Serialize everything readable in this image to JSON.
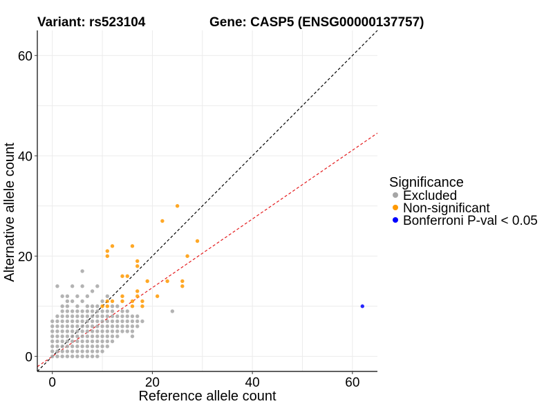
{
  "chart_data": {
    "type": "scatter",
    "title_left": "Variant: rs523104",
    "title_right": "Gene: CASP5 (ENSG00000137757)",
    "xlabel": "Reference allele count",
    "ylabel": "Alternative allele count",
    "xlim": [
      -3,
      65
    ],
    "ylim": [
      -3,
      65
    ],
    "xticks": [
      0,
      20,
      40,
      60
    ],
    "yticks": [
      0,
      20,
      40,
      60
    ],
    "grid": true,
    "reference_lines": [
      {
        "name": "identity",
        "slope": 1.0,
        "intercept": 0,
        "color": "#000000",
        "style": "dashed"
      },
      {
        "name": "fit",
        "slope": 0.685,
        "intercept": 0,
        "color": "#e41a1c",
        "style": "dashed"
      }
    ],
    "legend": {
      "title": "Significance",
      "position": "right",
      "items": [
        {
          "label": "Excluded",
          "color": "#a6a6a6"
        },
        {
          "label": "Non-significant",
          "color": "#ff9900"
        },
        {
          "label": "Bonferroni P-val < 0.05",
          "color": "#0000ff"
        }
      ]
    },
    "series": [
      {
        "name": "Excluded",
        "color": "#a6a6a6",
        "points": [
          [
            0,
            0
          ],
          [
            0,
            1
          ],
          [
            0,
            2
          ],
          [
            0,
            3
          ],
          [
            0,
            4
          ],
          [
            0,
            5
          ],
          [
            0,
            6
          ],
          [
            0,
            7
          ],
          [
            1,
            0
          ],
          [
            1,
            1
          ],
          [
            1,
            2
          ],
          [
            1,
            3
          ],
          [
            1,
            4
          ],
          [
            1,
            5
          ],
          [
            1,
            6
          ],
          [
            1,
            7
          ],
          [
            1,
            8
          ],
          [
            1,
            14
          ],
          [
            2,
            0
          ],
          [
            2,
            1
          ],
          [
            2,
            2
          ],
          [
            2,
            3
          ],
          [
            2,
            4
          ],
          [
            2,
            5
          ],
          [
            2,
            6
          ],
          [
            2,
            7
          ],
          [
            2,
            8
          ],
          [
            2,
            9
          ],
          [
            2,
            10
          ],
          [
            2,
            12
          ],
          [
            3,
            0
          ],
          [
            3,
            1
          ],
          [
            3,
            2
          ],
          [
            3,
            3
          ],
          [
            3,
            4
          ],
          [
            3,
            5
          ],
          [
            3,
            6
          ],
          [
            3,
            7
          ],
          [
            3,
            8
          ],
          [
            3,
            9
          ],
          [
            3,
            10
          ],
          [
            3,
            11
          ],
          [
            3,
            12
          ],
          [
            4,
            0
          ],
          [
            4,
            1
          ],
          [
            4,
            2
          ],
          [
            4,
            3
          ],
          [
            4,
            4
          ],
          [
            4,
            5
          ],
          [
            4,
            6
          ],
          [
            4,
            7
          ],
          [
            4,
            8
          ],
          [
            4,
            9
          ],
          [
            4,
            11
          ],
          [
            4,
            14
          ],
          [
            5,
            0
          ],
          [
            5,
            1
          ],
          [
            5,
            2
          ],
          [
            5,
            3
          ],
          [
            5,
            4
          ],
          [
            5,
            5
          ],
          [
            5,
            6
          ],
          [
            5,
            7
          ],
          [
            5,
            8
          ],
          [
            5,
            9
          ],
          [
            5,
            10
          ],
          [
            5,
            12
          ],
          [
            6,
            0
          ],
          [
            6,
            1
          ],
          [
            6,
            2
          ],
          [
            6,
            3
          ],
          [
            6,
            4
          ],
          [
            6,
            5
          ],
          [
            6,
            6
          ],
          [
            6,
            7
          ],
          [
            6,
            8
          ],
          [
            6,
            9
          ],
          [
            6,
            11
          ],
          [
            6,
            14
          ],
          [
            6,
            17
          ],
          [
            7,
            0
          ],
          [
            7,
            1
          ],
          [
            7,
            2
          ],
          [
            7,
            3
          ],
          [
            7,
            4
          ],
          [
            7,
            5
          ],
          [
            7,
            6
          ],
          [
            7,
            7
          ],
          [
            7,
            8
          ],
          [
            7,
            9
          ],
          [
            7,
            10
          ],
          [
            7,
            12
          ],
          [
            8,
            0
          ],
          [
            8,
            1
          ],
          [
            8,
            2
          ],
          [
            8,
            3
          ],
          [
            8,
            4
          ],
          [
            8,
            5
          ],
          [
            8,
            6
          ],
          [
            8,
            7
          ],
          [
            8,
            8
          ],
          [
            8,
            9
          ],
          [
            8,
            10
          ],
          [
            8,
            13
          ],
          [
            9,
            0
          ],
          [
            9,
            1
          ],
          [
            9,
            2
          ],
          [
            9,
            3
          ],
          [
            9,
            4
          ],
          [
            9,
            5
          ],
          [
            9,
            6
          ],
          [
            9,
            7
          ],
          [
            9,
            8
          ],
          [
            9,
            9
          ],
          [
            9,
            10
          ],
          [
            9,
            14
          ],
          [
            10,
            1
          ],
          [
            10,
            2
          ],
          [
            10,
            3
          ],
          [
            10,
            4
          ],
          [
            10,
            5
          ],
          [
            10,
            6
          ],
          [
            10,
            7
          ],
          [
            10,
            8
          ],
          [
            10,
            9
          ],
          [
            10,
            11
          ],
          [
            11,
            2
          ],
          [
            11,
            3
          ],
          [
            11,
            4
          ],
          [
            11,
            5
          ],
          [
            11,
            6
          ],
          [
            11,
            7
          ],
          [
            11,
            8
          ],
          [
            11,
            9
          ],
          [
            11,
            12
          ],
          [
            12,
            3
          ],
          [
            12,
            4
          ],
          [
            12,
            5
          ],
          [
            12,
            6
          ],
          [
            12,
            7
          ],
          [
            12,
            8
          ],
          [
            12,
            9
          ],
          [
            12,
            10
          ],
          [
            13,
            4
          ],
          [
            13,
            5
          ],
          [
            13,
            6
          ],
          [
            13,
            7
          ],
          [
            13,
            8
          ],
          [
            13,
            10
          ],
          [
            14,
            5
          ],
          [
            14,
            6
          ],
          [
            14,
            7
          ],
          [
            14,
            8
          ],
          [
            14,
            9
          ],
          [
            15,
            5
          ],
          [
            15,
            6
          ],
          [
            15,
            7
          ],
          [
            15,
            8
          ],
          [
            15,
            9
          ],
          [
            16,
            4
          ],
          [
            16,
            5
          ],
          [
            16,
            6
          ],
          [
            16,
            7
          ],
          [
            16,
            8
          ],
          [
            17,
            6
          ],
          [
            17,
            7
          ],
          [
            17,
            8
          ],
          [
            18,
            7
          ],
          [
            24,
            9
          ]
        ]
      },
      {
        "name": "Non-significant",
        "color": "#ff9900",
        "points": [
          [
            10,
            10
          ],
          [
            11,
            10
          ],
          [
            11,
            11
          ],
          [
            11,
            20
          ],
          [
            11,
            21
          ],
          [
            12,
            11
          ],
          [
            12,
            22
          ],
          [
            14,
            11
          ],
          [
            14,
            12
          ],
          [
            14,
            16
          ],
          [
            15,
            16
          ],
          [
            16,
            10
          ],
          [
            16,
            11
          ],
          [
            16,
            22
          ],
          [
            17,
            12
          ],
          [
            17,
            13
          ],
          [
            17,
            18
          ],
          [
            17,
            19
          ],
          [
            18,
            10
          ],
          [
            18,
            11
          ],
          [
            19,
            15
          ],
          [
            21,
            12
          ],
          [
            22,
            27
          ],
          [
            23,
            15
          ],
          [
            25,
            30
          ],
          [
            26,
            14
          ],
          [
            26,
            15
          ],
          [
            27,
            20
          ],
          [
            29,
            23
          ]
        ]
      },
      {
        "name": "Bonferroni P-val < 0.05",
        "color": "#0000ff",
        "points": [
          [
            62,
            10
          ]
        ]
      }
    ]
  }
}
